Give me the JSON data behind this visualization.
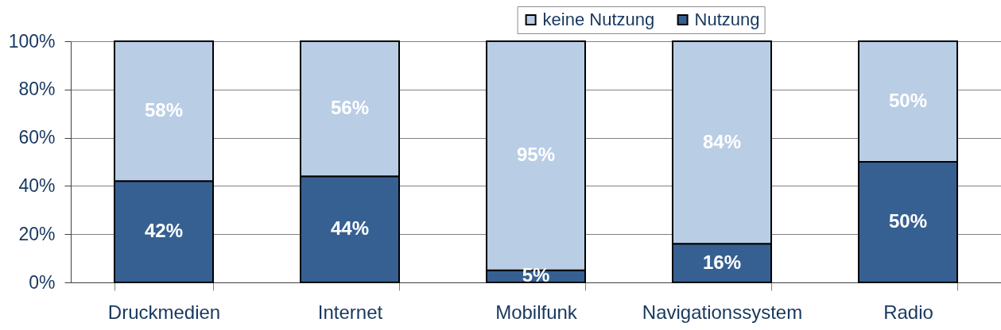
{
  "chart_data": {
    "type": "bar",
    "categories": [
      "Druckmedien",
      "Internet",
      "Mobilfunk",
      "Navigationssystem",
      "Radio"
    ],
    "series": [
      {
        "name": "Nutzung",
        "color": "#376092",
        "values": [
          42,
          44,
          5,
          16,
          50
        ],
        "value_labels": [
          "42%",
          "44%",
          "5%",
          "16%",
          "50%"
        ]
      },
      {
        "name": "keine Nutzung",
        "color": "#b9cde5",
        "values": [
          58,
          56,
          95,
          84,
          50
        ],
        "value_labels": [
          "58%",
          "56%",
          "95%",
          "84%",
          "50%"
        ]
      }
    ],
    "stacked": true,
    "ylim": [
      0,
      100
    ],
    "yticks": [
      {
        "value": 0,
        "label": "0%"
      },
      {
        "value": 20,
        "label": "20%"
      },
      {
        "value": 40,
        "label": "40%"
      },
      {
        "value": 60,
        "label": "60%"
      },
      {
        "value": 80,
        "label": "80%"
      },
      {
        "value": 100,
        "label": "100%"
      }
    ],
    "grid": "y",
    "legend": "top"
  }
}
